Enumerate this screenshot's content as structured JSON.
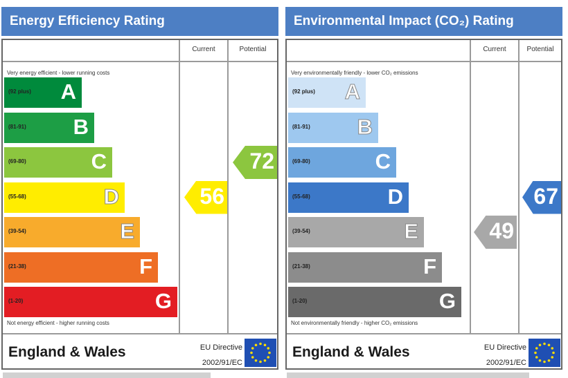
{
  "energy": {
    "title": "Energy Efficiency Rating",
    "current_label": "Current",
    "potential_label": "Potential",
    "top_note": "Very energy efficient - lower running costs",
    "bottom_note": "Not energy efficient - higher running costs",
    "bands": [
      {
        "letter": "A",
        "range": "(92 plus)",
        "color": "#008a3c"
      },
      {
        "letter": "B",
        "range": "(81-91)",
        "color": "#1d9e45"
      },
      {
        "letter": "C",
        "range": "(69-80)",
        "color": "#8cc63f"
      },
      {
        "letter": "D",
        "range": "(55-68)",
        "color": "#ffed00"
      },
      {
        "letter": "E",
        "range": "(39-54)",
        "color": "#f8ab2c"
      },
      {
        "letter": "F",
        "range": "(21-38)",
        "color": "#ee6e25"
      },
      {
        "letter": "G",
        "range": "(1-20)",
        "color": "#e31d23"
      }
    ],
    "current": {
      "value": "56",
      "band": "D",
      "color": "#ffed00"
    },
    "potential": {
      "value": "72",
      "band": "C",
      "color": "#8cc63f"
    },
    "footer": "England & Wales",
    "directive_line1": "EU Directive",
    "directive_line2": "2002/91/EC"
  },
  "environment": {
    "title": "Environmental Impact (CO₂) Rating",
    "current_label": "Current",
    "potential_label": "Potential",
    "top_note": "Very environmentally friendly - lower CO₂ emissions",
    "bottom_note": "Not environmentally friendly - higher CO₂ emissions",
    "bands": [
      {
        "letter": "A",
        "range": "(92 plus)",
        "color": "#cfe3f6"
      },
      {
        "letter": "B",
        "range": "(81-91)",
        "color": "#9ec8ef"
      },
      {
        "letter": "C",
        "range": "(69-80)",
        "color": "#6ea6de"
      },
      {
        "letter": "D",
        "range": "(55-68)",
        "color": "#3c78c8"
      },
      {
        "letter": "E",
        "range": "(39-54)",
        "color": "#a8a8a8"
      },
      {
        "letter": "F",
        "range": "(21-38)",
        "color": "#8c8c8c"
      },
      {
        "letter": "G",
        "range": "(1-20)",
        "color": "#6a6a6a"
      }
    ],
    "current": {
      "value": "49",
      "band": "E",
      "color": "#a8a8a8"
    },
    "potential": {
      "value": "67",
      "band": "D",
      "color": "#3c78c8"
    },
    "footer": "England & Wales",
    "directive_line1": "EU Directive",
    "directive_line2": "2002/91/EC"
  }
}
